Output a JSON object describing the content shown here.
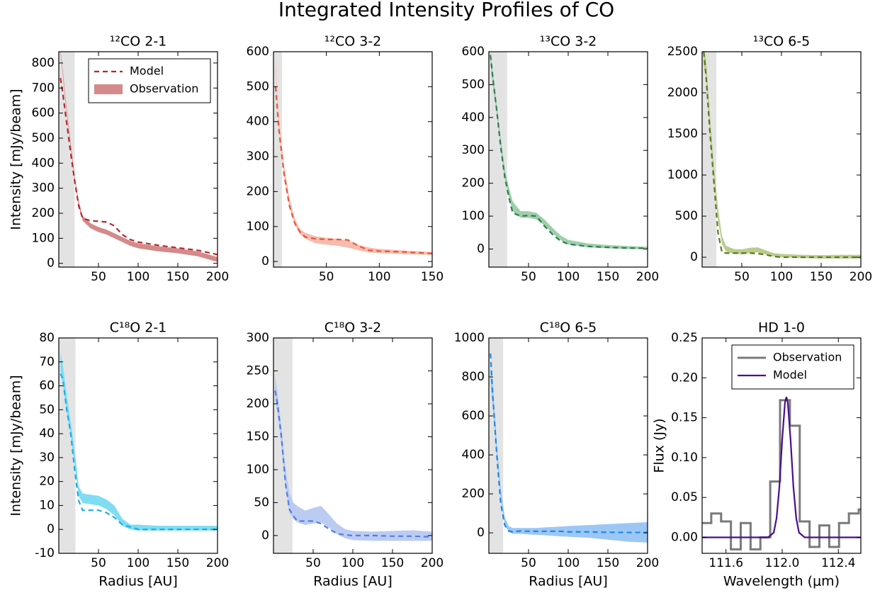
{
  "title": "Integrated Intensity Profiles of CO",
  "chart_data": [
    {
      "type": "line",
      "title": "¹²CO 2-1",
      "ylabel": "Intensity [mJy/beam]",
      "xlim": [
        0,
        200
      ],
      "xticks": [
        50,
        100,
        150,
        200
      ],
      "ylim": [
        -15,
        845
      ],
      "yticks": [
        0,
        100,
        200,
        300,
        400,
        500,
        600,
        700,
        800
      ],
      "shade": [
        0,
        20
      ],
      "shade_color": "#e3e3e3",
      "legend": "upper right",
      "series": [
        {
          "name": "Model",
          "style": "dashed",
          "color": "#b8262b",
          "x": [
            2,
            5,
            10,
            15,
            20,
            25,
            30,
            40,
            50,
            60,
            70,
            80,
            90,
            100,
            125,
            150,
            175,
            200
          ],
          "values": [
            740,
            680,
            560,
            440,
            330,
            230,
            180,
            170,
            168,
            165,
            150,
            115,
            95,
            85,
            72,
            62,
            52,
            35
          ]
        },
        {
          "name": "Observation",
          "style": "band",
          "color": "#d48a8a",
          "x": [
            2,
            5,
            10,
            15,
            20,
            25,
            30,
            40,
            50,
            60,
            70,
            80,
            90,
            100,
            125,
            150,
            175,
            200
          ],
          "lower": [
            840,
            750,
            600,
            460,
            330,
            230,
            170,
            140,
            125,
            115,
            100,
            85,
            70,
            60,
            48,
            40,
            28,
            5
          ],
          "upper": [
            860,
            770,
            620,
            480,
            350,
            250,
            190,
            160,
            145,
            135,
            120,
            105,
            90,
            80,
            68,
            60,
            48,
            25
          ]
        }
      ]
    },
    {
      "type": "line",
      "title": "¹²CO 3-2",
      "xlim": [
        0,
        150
      ],
      "xticks": [
        50,
        100,
        150
      ],
      "ylim": [
        -16,
        600
      ],
      "yticks": [
        0,
        100,
        200,
        300,
        400,
        500,
        600
      ],
      "shade": [
        0,
        8
      ],
      "shade_color": "#e3e3e3",
      "series": [
        {
          "style": "dashed",
          "color": "#e8573b",
          "x": [
            2,
            5,
            10,
            15,
            20,
            25,
            30,
            40,
            50,
            60,
            70,
            80,
            90,
            100,
            125,
            150
          ],
          "values": [
            500,
            380,
            250,
            160,
            110,
            85,
            70,
            65,
            63,
            63,
            62,
            45,
            32,
            30,
            27,
            23
          ]
        },
        {
          "style": "band",
          "color": "#f6bcae",
          "x": [
            2,
            5,
            10,
            15,
            20,
            25,
            30,
            40,
            50,
            60,
            70,
            80,
            90,
            100,
            125,
            150
          ],
          "lower": [
            545,
            385,
            245,
            158,
            105,
            78,
            65,
            52,
            48,
            45,
            40,
            32,
            26,
            24,
            21,
            19
          ],
          "upper": [
            575,
            415,
            275,
            182,
            125,
            92,
            82,
            72,
            68,
            65,
            60,
            48,
            40,
            36,
            31,
            27
          ]
        }
      ]
    },
    {
      "type": "line",
      "title": "¹³CO 3-2",
      "xlim": [
        0,
        200
      ],
      "xticks": [
        50,
        100,
        150,
        200
      ],
      "ylim": [
        -55,
        600
      ],
      "yticks": [
        0,
        100,
        200,
        300,
        400,
        500,
        600
      ],
      "shade": [
        0,
        23
      ],
      "shade_color": "#e3e3e3",
      "series": [
        {
          "style": "dashed",
          "color": "#2e7d4f",
          "x": [
            2,
            5,
            10,
            15,
            20,
            25,
            30,
            40,
            50,
            60,
            70,
            80,
            90,
            100,
            125,
            150,
            175,
            200
          ],
          "values": [
            590,
            520,
            420,
            310,
            220,
            160,
            110,
            100,
            102,
            100,
            70,
            45,
            25,
            15,
            8,
            5,
            3,
            2
          ]
        },
        {
          "style": "band",
          "color": "#9fcfaa",
          "x": [
            2,
            5,
            10,
            15,
            20,
            25,
            30,
            40,
            50,
            60,
            70,
            80,
            90,
            100,
            125,
            150,
            175,
            200
          ],
          "lower": [
            560,
            500,
            410,
            305,
            215,
            160,
            115,
            95,
            95,
            90,
            72,
            48,
            28,
            14,
            5,
            2,
            0,
            -1
          ],
          "upper": [
            600,
            540,
            440,
            335,
            245,
            190,
            145,
            115,
            115,
            110,
            90,
            65,
            42,
            28,
            17,
            12,
            9,
            7
          ]
        }
      ]
    },
    {
      "type": "line",
      "title": "¹³CO 6-5",
      "xlim": [
        0,
        200
      ],
      "xticks": [
        50,
        100,
        150,
        200
      ],
      "ylim": [
        -120,
        2500
      ],
      "yticks": [
        0,
        500,
        1000,
        1500,
        2000,
        2500
      ],
      "shade": [
        0,
        18
      ],
      "shade_color": "#e3e3e3",
      "series": [
        {
          "style": "dashed",
          "color": "#5a7a1a",
          "x": [
            2,
            5,
            10,
            15,
            20,
            25,
            30,
            40,
            50,
            60,
            70,
            80,
            90,
            100,
            125,
            150,
            175,
            200
          ],
          "values": [
            2500,
            2200,
            1500,
            900,
            300,
            60,
            50,
            50,
            50,
            50,
            45,
            30,
            10,
            0,
            0,
            0,
            0,
            0
          ]
        },
        {
          "style": "band",
          "color": "#b8cc8e",
          "x": [
            2,
            5,
            10,
            15,
            20,
            25,
            30,
            40,
            50,
            60,
            70,
            80,
            90,
            100,
            125,
            150,
            175,
            200
          ],
          "lower": [
            2350,
            2200,
            1500,
            950,
            450,
            160,
            70,
            40,
            35,
            50,
            60,
            35,
            10,
            0,
            -10,
            -15,
            -15,
            -15
          ],
          "upper": [
            2550,
            2400,
            1700,
            1100,
            600,
            260,
            140,
            100,
            95,
            115,
            120,
            85,
            50,
            40,
            30,
            25,
            30,
            30
          ]
        }
      ]
    },
    {
      "type": "line",
      "title": "C¹⁸O 2-1",
      "ylabel": "Intensity [mJy/beam]",
      "xlabel": "Radius [AU]",
      "xlim": [
        0,
        200
      ],
      "xticks": [
        50,
        100,
        150,
        200
      ],
      "ylim": [
        -10,
        80
      ],
      "yticks": [
        -10,
        0,
        10,
        20,
        30,
        40,
        50,
        60,
        70,
        80
      ],
      "shade": [
        0,
        21
      ],
      "shade_color": "#e3e3e3",
      "series": [
        {
          "style": "dashed",
          "color": "#1aaee0",
          "x": [
            2,
            5,
            10,
            15,
            20,
            25,
            30,
            40,
            50,
            60,
            70,
            80,
            90,
            100,
            125,
            150,
            175,
            200
          ],
          "values": [
            65,
            63,
            50,
            40,
            25,
            12,
            8,
            8,
            8,
            7,
            5,
            2,
            1,
            0,
            0,
            0,
            0,
            0
          ]
        },
        {
          "style": "band",
          "color": "#80dcf2",
          "x": [
            2,
            5,
            10,
            15,
            20,
            25,
            30,
            40,
            50,
            60,
            70,
            80,
            90,
            100,
            125,
            150,
            175,
            200
          ],
          "lower": [
            66,
            61,
            49,
            39,
            27,
            14,
            11,
            10.5,
            10,
            8.5,
            6,
            1.5,
            0,
            -0.5,
            -0.5,
            -0.5,
            -0.5,
            -0.5
          ],
          "upper": [
            74,
            69,
            56,
            45,
            33,
            18,
            15,
            14.5,
            14,
            12.5,
            10,
            4.5,
            2,
            2,
            1.5,
            1.5,
            1.5,
            1.5
          ]
        }
      ]
    },
    {
      "type": "line",
      "title": "C¹⁸O 3-2",
      "xlabel": "Radius [AU]",
      "xlim": [
        0,
        200
      ],
      "xticks": [
        50,
        100,
        150,
        200
      ],
      "ylim": [
        -27,
        300
      ],
      "yticks": [
        0,
        50,
        100,
        150,
        200,
        250,
        300
      ],
      "shade": [
        0,
        24
      ],
      "shade_color": "#e3e3e3",
      "series": [
        {
          "style": "dashed",
          "color": "#4f7fe0",
          "x": [
            2,
            5,
            10,
            15,
            20,
            25,
            30,
            40,
            50,
            60,
            70,
            80,
            90,
            100,
            125,
            150,
            175,
            200
          ],
          "values": [
            220,
            200,
            150,
            80,
            40,
            30,
            22,
            22,
            22,
            18,
            10,
            3,
            1,
            0,
            0,
            -1,
            -1,
            -2
          ]
        },
        {
          "style": "band",
          "color": "#bccbf2",
          "x": [
            2,
            5,
            10,
            15,
            20,
            25,
            30,
            40,
            50,
            60,
            70,
            80,
            90,
            100,
            125,
            150,
            175,
            200
          ],
          "lower": [
            210,
            185,
            135,
            75,
            35,
            25,
            20,
            16,
            18,
            20,
            12,
            2,
            -4,
            -7,
            -8,
            -8,
            -8,
            -8
          ],
          "upper": [
            245,
            220,
            165,
            105,
            65,
            50,
            45,
            38,
            42,
            45,
            32,
            18,
            10,
            7,
            6,
            7,
            8,
            6
          ]
        }
      ]
    },
    {
      "type": "line",
      "title": "C¹⁸O 6-5",
      "xlabel": "Radius [AU]",
      "xlim": [
        0,
        200
      ],
      "xticks": [
        50,
        100,
        150,
        200
      ],
      "ylim": [
        -105,
        1000
      ],
      "yticks": [
        0,
        200,
        400,
        600,
        800,
        1000
      ],
      "shade": [
        0,
        18
      ],
      "shade_color": "#e3e3e3",
      "series": [
        {
          "style": "dashed",
          "color": "#1e88e5",
          "x": [
            2,
            5,
            10,
            15,
            20,
            25,
            30,
            40,
            50,
            60,
            70,
            80,
            90,
            100,
            125,
            150,
            175,
            200
          ],
          "values": [
            920,
            700,
            400,
            150,
            40,
            10,
            5,
            10,
            8,
            8,
            8,
            8,
            8,
            5,
            5,
            3,
            2,
            2
          ]
        },
        {
          "style": "band",
          "color": "#9cc7f5",
          "x": [
            2,
            5,
            10,
            15,
            20,
            25,
            30,
            40,
            50,
            60,
            70,
            80,
            90,
            100,
            125,
            150,
            175,
            200
          ],
          "lower": [
            780,
            640,
            390,
            170,
            40,
            5,
            -5,
            -5,
            -8,
            -10,
            -12,
            -15,
            -18,
            -20,
            -25,
            -35,
            -45,
            -50
          ],
          "upper": [
            860,
            760,
            460,
            230,
            80,
            35,
            25,
            25,
            25,
            25,
            28,
            30,
            32,
            35,
            40,
            45,
            50,
            55
          ]
        }
      ]
    },
    {
      "type": "line",
      "title": "HD 1-0",
      "ylabel": "Flux (Jy)",
      "xlabel": "Wavelength (μm)",
      "xlim": [
        111.43,
        112.56
      ],
      "xticks": [
        111.6,
        {
          "value": 112,
          "label": "112.0"
        },
        112.4
      ],
      "ylim": [
        -0.02,
        0.25
      ],
      "yticks": [
        {
          "value": 0,
          "label": "0.00"
        },
        {
          "value": 0.05,
          "label": "0.05"
        },
        {
          "value": 0.1,
          "label": "0.10"
        },
        {
          "value": 0.15,
          "label": "0.15"
        },
        {
          "value": 0.2,
          "label": "0.20"
        },
        {
          "value": 0.25,
          "label": "0.25"
        }
      ],
      "legend": "upper right",
      "series": [
        {
          "name": "Observation",
          "style": "step",
          "color": "#7a7a7a",
          "x": [
            111.46,
            111.53,
            111.6,
            111.67,
            111.74,
            111.81,
            111.88,
            111.95,
            112.02,
            112.09,
            112.16,
            112.23,
            112.3,
            112.37,
            112.44,
            112.51,
            112.58
          ],
          "values": [
            0.018,
            0.03,
            0.02,
            -0.015,
            0.018,
            -0.015,
            0.0,
            0.07,
            0.172,
            0.14,
            0.02,
            -0.012,
            0.015,
            -0.012,
            0.018,
            0.03,
            0.035
          ]
        },
        {
          "name": "Model",
          "style": "solid",
          "color": "#4b0d8c",
          "x": [
            111.43,
            111.8,
            111.9,
            111.94,
            111.96,
            111.98,
            112.0,
            112.02,
            112.03,
            112.04,
            112.06,
            112.08,
            112.1,
            112.12,
            112.16,
            112.3,
            112.56
          ],
          "values": [
            0,
            0,
            0,
            0.006,
            0.024,
            0.063,
            0.122,
            0.169,
            0.176,
            0.169,
            0.122,
            0.063,
            0.024,
            0.006,
            0,
            0,
            0
          ]
        }
      ]
    }
  ]
}
